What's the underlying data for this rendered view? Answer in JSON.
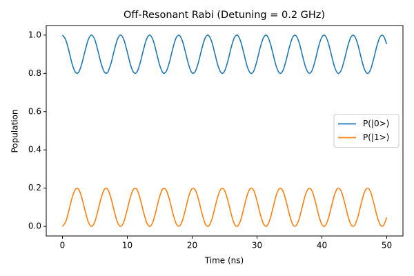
{
  "chart_data": {
    "type": "line",
    "title": "Off-Resonant Rabi (Detuning = 0.2 GHz)",
    "x_label": "Time (ns)",
    "y_label": "Population",
    "x": [
      0,
      0.5,
      1,
      1.5,
      2,
      2.5,
      3,
      3.5,
      4,
      4.5,
      5,
      5.5,
      6,
      6.5,
      7,
      7.5,
      8,
      8.5,
      9,
      9.5,
      10,
      10.5,
      11,
      11.5,
      12,
      12.5,
      13,
      13.5,
      14,
      14.5,
      15,
      15.5,
      16,
      16.5,
      17,
      17.5,
      18,
      18.5,
      19,
      19.5,
      20,
      20.5,
      21,
      21.5,
      22,
      22.5,
      23,
      23.5,
      24,
      24.5,
      25,
      25.5,
      26,
      26.5,
      27,
      27.5,
      28,
      28.5,
      29,
      29.5,
      30,
      30.5,
      31,
      31.5,
      32,
      32.5,
      33,
      33.5,
      34,
      34.5,
      35,
      35.5,
      36,
      36.5,
      37,
      37.5,
      38,
      38.5,
      39,
      39.5,
      40,
      40.5,
      41,
      41.5,
      42,
      42.5,
      43,
      43.5,
      44,
      44.5,
      45,
      45.5,
      46,
      46.5,
      47,
      47.5,
      48,
      48.5,
      49,
      49.5,
      50
    ],
    "series": [
      {
        "name": "P(|0>)",
        "color": "#1f77b4",
        "values": [
          1,
          0.976,
          0.917,
          0.849,
          0.806,
          0.806,
          0.852,
          0.919,
          0.978,
          1,
          0.975,
          0.914,
          0.847,
          0.805,
          0.807,
          0.854,
          0.922,
          0.98,
          1,
          0.973,
          0.911,
          0.844,
          0.804,
          0.808,
          0.857,
          0.925,
          0.981,
          1,
          0.971,
          0.908,
          0.842,
          0.803,
          0.81,
          0.859,
          0.928,
          0.983,
          0.999,
          0.969,
          0.906,
          0.84,
          0.802,
          0.811,
          0.862,
          0.93,
          0.985,
          0.999,
          0.967,
          0.903,
          0.838,
          0.802,
          0.812,
          0.864,
          0.933,
          0.986,
          0.999,
          0.965,
          0.9,
          0.835,
          0.801,
          0.813,
          0.867,
          0.936,
          0.987,
          0.998,
          0.962,
          0.897,
          0.833,
          0.801,
          0.815,
          0.87,
          0.938,
          0.989,
          0.997,
          0.96,
          0.894,
          0.831,
          0.801,
          0.816,
          0.872,
          0.941,
          0.99,
          0.997,
          0.958,
          0.892,
          0.829,
          0.8,
          0.818,
          0.875,
          0.943,
          0.991,
          0.996,
          0.956,
          0.889,
          0.827,
          0.8,
          0.819,
          0.878,
          0.946,
          0.992,
          0.995,
          0.953
        ]
      },
      {
        "name": "P(|1>)",
        "color": "#ff7f0e",
        "values": [
          0,
          0.024,
          0.083,
          0.151,
          0.194,
          0.194,
          0.148,
          0.081,
          0.022,
          0,
          0.025,
          0.086,
          0.153,
          0.195,
          0.193,
          0.146,
          0.078,
          0.02,
          0,
          0.027,
          0.089,
          0.156,
          0.196,
          0.192,
          0.143,
          0.075,
          0.019,
          0,
          0.029,
          0.092,
          0.158,
          0.197,
          0.19,
          0.141,
          0.072,
          0.017,
          0.001,
          0.031,
          0.094,
          0.16,
          0.198,
          0.189,
          0.138,
          0.07,
          0.015,
          0.001,
          0.033,
          0.097,
          0.162,
          0.198,
          0.188,
          0.136,
          0.067,
          0.014,
          0.001,
          0.035,
          0.1,
          0.165,
          0.199,
          0.187,
          0.133,
          0.064,
          0.013,
          0.002,
          0.038,
          0.103,
          0.167,
          0.199,
          0.185,
          0.13,
          0.062,
          0.011,
          0.003,
          0.04,
          0.106,
          0.169,
          0.199,
          0.184,
          0.128,
          0.059,
          0.01,
          0.003,
          0.042,
          0.108,
          0.171,
          0.2,
          0.182,
          0.125,
          0.057,
          0.009,
          0.004,
          0.044,
          0.111,
          0.173,
          0.2,
          0.181,
          0.122,
          0.054,
          0.008,
          0.005,
          0.047
        ]
      }
    ],
    "xlim": [
      -2.5,
      52.5
    ],
    "xticks": [
      0,
      10,
      20,
      30,
      40,
      50
    ],
    "ylim": [
      -0.05,
      1.05
    ],
    "yticks": [
      {
        "value": 0,
        "label": "0.0"
      },
      0.2,
      0.4,
      0.6,
      0.8,
      {
        "value": 1,
        "label": "1.0"
      }
    ],
    "legend": "right"
  }
}
